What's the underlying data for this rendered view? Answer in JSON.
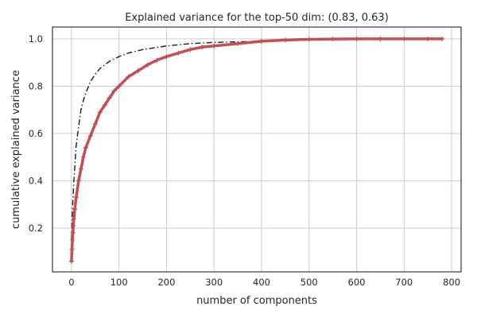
{
  "chart_data": {
    "type": "line",
    "title": "Explained variance for the top-50 dim: (0.83, 0.63)",
    "xlabel": "number of components",
    "ylabel": "cumulative explained variance",
    "xlim": [
      -40,
      820
    ],
    "ylim": [
      0.015,
      1.05
    ],
    "xticks": [
      0,
      100,
      200,
      300,
      400,
      500,
      600,
      700,
      800
    ],
    "yticks": [
      0.2,
      0.4,
      0.6,
      0.8,
      1.0
    ],
    "xtick_labels": [
      "0",
      "100",
      "200",
      "300",
      "400",
      "500",
      "600",
      "700",
      "800"
    ],
    "ytick_labels": [
      "0.2",
      "0.4",
      "0.6",
      "0.8",
      "1.0"
    ],
    "grid": true,
    "colors": {
      "red_series": "#c44e52",
      "black_series": "#1a1a1a"
    },
    "series": [
      {
        "style": "red plus markers",
        "x": [
          0,
          1,
          2,
          3,
          4,
          5,
          7,
          10,
          15,
          20,
          25,
          30,
          40,
          50,
          60,
          70,
          80,
          90,
          100,
          120,
          140,
          160,
          180,
          200,
          225,
          250,
          275,
          300,
          350,
          400,
          450,
          500,
          550,
          600,
          650,
          700,
          750,
          780
        ],
        "y": [
          0.06,
          0.11,
          0.15,
          0.18,
          0.21,
          0.24,
          0.28,
          0.33,
          0.4,
          0.45,
          0.5,
          0.54,
          0.59,
          0.64,
          0.69,
          0.72,
          0.75,
          0.78,
          0.8,
          0.84,
          0.865,
          0.89,
          0.91,
          0.925,
          0.94,
          0.955,
          0.965,
          0.97,
          0.98,
          0.99,
          0.995,
          0.998,
          0.999,
          1.0,
          1.0,
          1.0,
          1.0,
          1.0
        ]
      },
      {
        "style": "black dash-dot line",
        "x": [
          0,
          2,
          5,
          10,
          15,
          20,
          25,
          30,
          40,
          50,
          60,
          70,
          80,
          100,
          120,
          150,
          200,
          250,
          300,
          400,
          500,
          600,
          700,
          780
        ],
        "y": [
          0.15,
          0.28,
          0.4,
          0.55,
          0.63,
          0.7,
          0.74,
          0.77,
          0.82,
          0.85,
          0.875,
          0.89,
          0.905,
          0.925,
          0.94,
          0.955,
          0.97,
          0.98,
          0.985,
          0.99,
          0.995,
          0.998,
          1.0,
          1.0
        ]
      }
    ]
  }
}
